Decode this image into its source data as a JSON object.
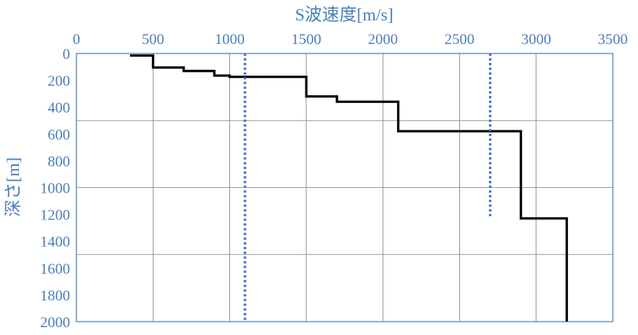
{
  "chart_data": {
    "type": "line",
    "xlabel": "S波速度[m/s]",
    "ylabel": "深さ[m]",
    "xlim": [
      0,
      3500
    ],
    "ylim": [
      0,
      2000
    ],
    "y_inverted": true,
    "x_axis_position": "top",
    "xticks": [
      0,
      500,
      1000,
      1500,
      2000,
      2500,
      3000,
      3500
    ],
    "yticks": [
      0,
      200,
      400,
      600,
      800,
      1000,
      1200,
      1400,
      1600,
      1800,
      2000
    ],
    "grid": "vertical-every-500, horizontal-every-500",
    "series": [
      {
        "style": "solid",
        "color": "#000000",
        "points": [
          [
            350,
            15
          ],
          [
            500,
            15
          ],
          [
            500,
            105
          ],
          [
            700,
            105
          ],
          [
            700,
            130
          ],
          [
            900,
            130
          ],
          [
            900,
            165
          ],
          [
            1000,
            165
          ],
          [
            1000,
            175
          ],
          [
            1500,
            175
          ],
          [
            1500,
            320
          ],
          [
            1700,
            320
          ],
          [
            1700,
            360
          ],
          [
            2100,
            360
          ],
          [
            2100,
            580
          ],
          [
            2900,
            580
          ],
          [
            2900,
            1230
          ],
          [
            3200,
            1230
          ],
          [
            3200,
            2000
          ]
        ]
      },
      {
        "style": "dotted",
        "color": "#4472c4",
        "points": [
          [
            1100,
            0
          ],
          [
            1100,
            2000
          ]
        ]
      },
      {
        "style": "dotted",
        "color": "#4472c4",
        "points": [
          [
            2700,
            0
          ],
          [
            2700,
            1230
          ]
        ]
      }
    ]
  }
}
